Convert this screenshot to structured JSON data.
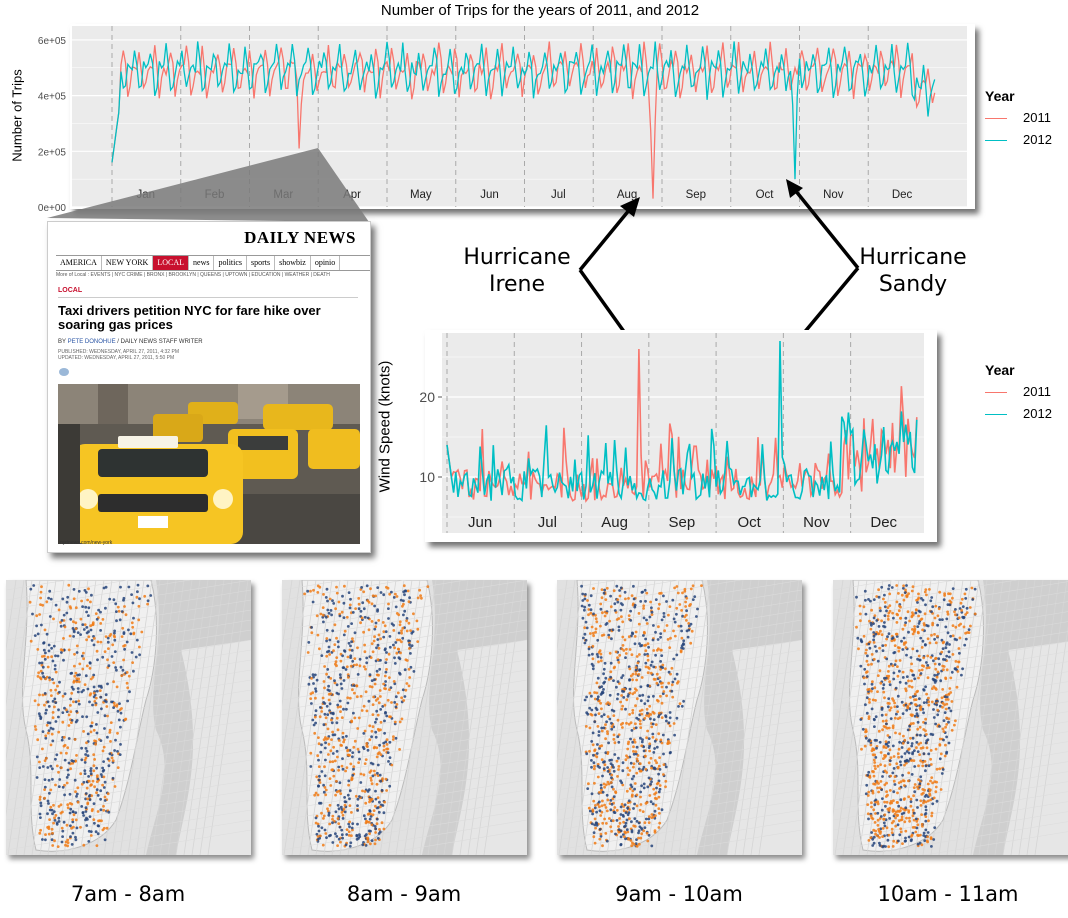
{
  "chart_data": [
    {
      "type": "line",
      "title": "Number of Trips for the years of 2011, and 2012",
      "ylabel": "Number of Trips",
      "xlabel": "",
      "x_ticks": [
        "Jan",
        "Feb",
        "Mar",
        "Apr",
        "May",
        "Jun",
        "Jul",
        "Aug",
        "Sep",
        "Oct",
        "Nov",
        "Dec"
      ],
      "y_ticks": [
        "0e+00",
        "2e+05",
        "4e+05",
        "6e+05"
      ],
      "ylim": [
        0,
        650000
      ],
      "legend_title": "Year",
      "legend_position": "right",
      "grid": true,
      "series": [
        {
          "name": "2011",
          "color": "#F8766D",
          "spikes": [
            {
              "day": 83,
              "value": 210000
            },
            {
              "day": 240,
              "value": 30000
            }
          ]
        },
        {
          "name": "2012",
          "color": "#00BFC4",
          "spikes": [
            {
              "day": 303,
              "value": 100000
            }
          ]
        }
      ]
    },
    {
      "type": "line",
      "title": "",
      "ylabel": "Wind Speed (knots)",
      "xlabel": "",
      "x_ticks": [
        "Jun",
        "Jul",
        "Aug",
        "Sep",
        "Oct",
        "Nov",
        "Dec"
      ],
      "y_ticks": [
        "10",
        "20"
      ],
      "ylim": [
        3,
        28
      ],
      "legend_title": "Year",
      "legend_position": "right",
      "grid": true,
      "series": [
        {
          "name": "2011",
          "color": "#F8766D",
          "spikes": [
            {
              "day": 239,
              "value": 26
            }
          ]
        },
        {
          "name": "2012",
          "color": "#00BFC4",
          "spikes": [
            {
              "day": 303,
              "value": 27
            }
          ]
        }
      ]
    }
  ],
  "annotations": {
    "irene": "Hurricane\nIrene",
    "sandy": "Hurricane\nSandy"
  },
  "article": {
    "masthead": "DAILY NEWS",
    "nav_items": [
      "AMERICA",
      "NEW YORK",
      "LOCAL",
      "news",
      "politics",
      "sports",
      "showbiz",
      "opinio"
    ],
    "active_nav": "LOCAL",
    "subnav": "More of Local :  EVENTS  |  NYC CRIME  |  BRONX  |  BROOKLYN  |  QUEENS  |  UPTOWN  |  EDUCATION  |  WEATHER  |  DEATH",
    "section": "LOCAL",
    "headline": "Taxi drivers petition NYC for fare hike over soaring gas prices",
    "byline_prefix": "BY ",
    "byline_author": "PETE DONOHUE",
    "byline_suffix": " / DAILY NEWS STAFF WRITER",
    "published": "PUBLISHED: WEDNESDAY, APRIL 27, 2011, 4:32 PM",
    "updated": "UPDATED: WEDNESDAY, APRIL 27, 2011, 5:50 PM",
    "credit": "nydnews.com/new-york"
  },
  "maps": [
    {
      "caption": "7am - 8am"
    },
    {
      "caption": "8am - 9am"
    },
    {
      "caption": "9am - 10am"
    },
    {
      "caption": "10am - 11am"
    }
  ],
  "map_colors": {
    "2011": "#F07B16",
    "2012": "#26447A"
  }
}
